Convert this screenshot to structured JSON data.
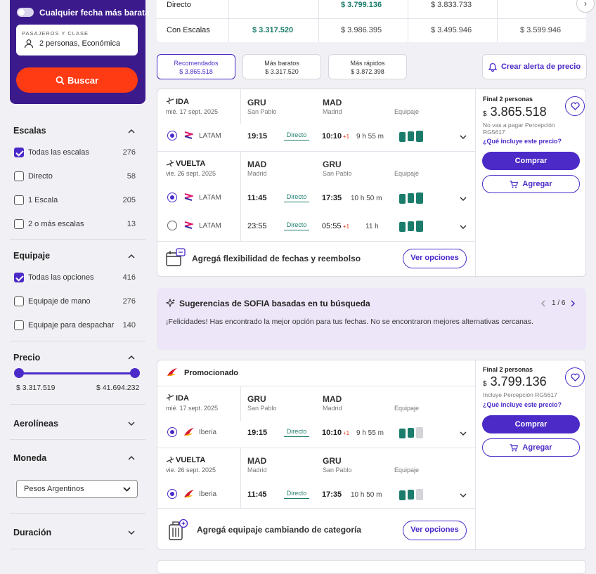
{
  "sidebar": {
    "toggle_label": "Cualquier fecha más barata",
    "passengers_label": "PASAJEROS Y CLASE",
    "passengers_value": "2 personas, Económica",
    "search_button": "Buscar",
    "stops": {
      "title": "Escalas",
      "options": [
        {
          "label": "Todas las escalas",
          "count": "276",
          "checked": true
        },
        {
          "label": "Directo",
          "count": "58",
          "checked": false
        },
        {
          "label": "1 Escala",
          "count": "205",
          "checked": false
        },
        {
          "label": "2 o más escalas",
          "count": "13",
          "checked": false
        }
      ]
    },
    "baggage": {
      "title": "Equipaje",
      "options": [
        {
          "label": "Todas las opciones",
          "count": "416",
          "checked": true
        },
        {
          "label": "Equipaje de mano",
          "count": "276",
          "checked": false
        },
        {
          "label": "Equipaje para despachar",
          "count": "140",
          "checked": false
        }
      ]
    },
    "price": {
      "title": "Precio",
      "min": "$ 3.317.519",
      "max": "$ 41.694.232"
    },
    "airlines_title": "Aerolíneas",
    "currency": {
      "title": "Moneda",
      "selected": "Pesos Argentinos"
    },
    "duration_title": "Duración"
  },
  "matrix": {
    "rows": [
      {
        "label": "Directo",
        "cells": [
          "",
          "$ 3.799.136",
          "$ 3.833.733",
          ""
        ]
      },
      {
        "label": "Con Escalas",
        "cells": [
          "$ 3.317.520",
          "$ 3.986.395",
          "$ 3.495.946",
          "$ 3.599.946"
        ]
      }
    ],
    "next_icon": "›"
  },
  "sort_tabs": [
    {
      "label": "Recomendados",
      "price": "$ 3.865.518"
    },
    {
      "label": "Más baratos",
      "price": "$ 3.317.520"
    },
    {
      "label": "Más rápidos",
      "price": "$ 3.872.398"
    }
  ],
  "price_alert": "Crear alerta de precio",
  "card1": {
    "outbound": {
      "type": "IDA",
      "date": "mié. 17 sept. 2025",
      "from": "GRU",
      "from_name": "San Pablo",
      "to": "MAD",
      "to_name": "Madrid",
      "baggage": "Equipaje"
    },
    "outbound_flights": [
      {
        "airline": "LATAM",
        "dep": "19:15",
        "stops": "Directo",
        "arr": "10:10",
        "plus": "+1",
        "duration": "9 h 55 m"
      }
    ],
    "return": {
      "type": "VUELTA",
      "date": "vie. 26 sept. 2025",
      "from": "MAD",
      "from_name": "Madrid",
      "to": "GRU",
      "to_name": "San Pablo",
      "baggage": "Equipaje"
    },
    "return_flights": [
      {
        "airline": "LATAM",
        "dep": "11:45",
        "stops": "Directo",
        "arr": "17:35",
        "plus": "",
        "duration": "10 h 50 m"
      },
      {
        "airline": "LATAM",
        "dep": "23:55",
        "stops": "Directo",
        "arr": "05:55",
        "plus": "+1",
        "duration": "11 h"
      }
    ],
    "final_label": "Final 2 personas",
    "currency": "$",
    "price": "3.865.518",
    "note": "No vas a pagar Percepción RG5617",
    "price_link": "¿Qué incluye este precio?",
    "buy": "Comprar",
    "add": "Agregar",
    "upsell": "Agregá flexibilidad de fechas y reembolso",
    "options": "Ver opciones"
  },
  "sofia": {
    "title": "Sugerencias de SOFIA basadas en tu búsqueda",
    "pager": "1 / 6",
    "message": "¡Felicidades! Has encontrado la mejor opción para tus fechas. No se encontraron mejores alternativas cercanas."
  },
  "card2": {
    "promo": "Promocionado",
    "outbound": {
      "type": "IDA",
      "date": "mié. 17 sept. 2025",
      "from": "GRU",
      "from_name": "San Pablo",
      "to": "MAD",
      "to_name": "Madrid",
      "baggage": "Equipaje"
    },
    "outbound_flights": [
      {
        "airline": "Iberia",
        "dep": "19:15",
        "stops": "Directo",
        "arr": "10:10",
        "plus": "+1",
        "duration": "9 h 55 m"
      }
    ],
    "return": {
      "type": "VUELTA",
      "date": "vie. 26 sept. 2025",
      "from": "MAD",
      "from_name": "Madrid",
      "to": "GRU",
      "to_name": "San Pablo",
      "baggage": "Equipaje"
    },
    "return_flights": [
      {
        "airline": "Iberia",
        "dep": "11:45",
        "stops": "Directo",
        "arr": "17:35",
        "plus": "",
        "duration": "10 h 50 m"
      }
    ],
    "final_label": "Final 2 personas",
    "currency": "$",
    "price": "3.799.136",
    "note": "Incluye Percepción RG5617",
    "price_link": "¿Qué incluye este precio?",
    "buy": "Comprar",
    "add": "Agregar",
    "upsell": "Agregá equipaje cambiando de categoría",
    "options": "Ver opciones"
  },
  "colors": {
    "primary": "#4b2ac8",
    "search_bg": "#3b1a8c",
    "search_button": "#ff3b14",
    "green": "#1b7c6b"
  }
}
